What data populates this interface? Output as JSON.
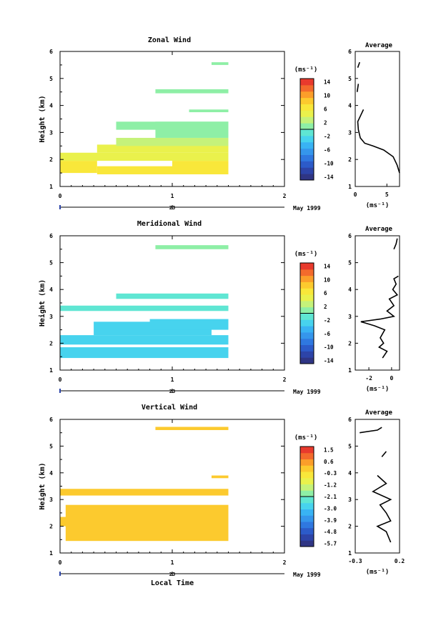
{
  "colors": {
    "scale": [
      "#2f3584",
      "#2d44a8",
      "#2c5bc9",
      "#2f78e0",
      "#3596ec",
      "#39b3f4",
      "#47d3ee",
      "#5fe6d3",
      "#8eefa6",
      "#c5f27a",
      "#eaf14c",
      "#f9e73a",
      "#fcca2e",
      "#fb9e2a",
      "#f36a2c",
      "#e83a2d"
    ],
    "fill_light": "#ffd44b",
    "fill_yellow": "#f7f23a",
    "fill_cyan": "#3ff0f0",
    "fill_sky": "#3ec6f4",
    "fill_teal": "#5ff0c0",
    "fill_mint": "#6ff7b0",
    "line": "#000000"
  },
  "panels": [
    {
      "title": "Zonal Wind",
      "ylabel": "Height (km)",
      "yticks": [
        "1",
        "2",
        "3",
        "4",
        "5",
        "6"
      ],
      "xticks": [
        "0",
        "1",
        "2"
      ],
      "date_day": "23",
      "date_label": "May 1999",
      "cbar_unit": "(ms⁻¹)",
      "cbar_ticks": [
        "14",
        "10",
        "6",
        "2",
        "-2",
        "-6",
        "-10",
        "-14"
      ],
      "avg_title": "Average",
      "avg_xticks": [
        "0",
        "5"
      ],
      "avg_unit": "(ms⁻¹)"
    },
    {
      "title": "Meridional Wind",
      "ylabel": "Height (km)",
      "yticks": [
        "1",
        "2",
        "3",
        "4",
        "5",
        "6"
      ],
      "xticks": [
        "0",
        "1",
        "2"
      ],
      "date_day": "23",
      "date_label": "May 1999",
      "cbar_unit": "(ms⁻¹)",
      "cbar_ticks": [
        "14",
        "10",
        "6",
        "2",
        "-2",
        "-6",
        "-10",
        "-14"
      ],
      "avg_title": "Average",
      "avg_xticks": [
        "-2",
        "0"
      ],
      "avg_unit": "(ms⁻¹)"
    },
    {
      "title": "Vertical Wind",
      "ylabel": "Height (km)",
      "yticks": [
        "1",
        "2",
        "3",
        "4",
        "5",
        "6"
      ],
      "xticks": [
        "0",
        "1",
        "2"
      ],
      "date_day": "23",
      "date_label": "May 1999",
      "cbar_unit": "(ms⁻¹)",
      "cbar_ticks": [
        "1.5",
        "0.6",
        "-0.3",
        "-1.2",
        "-2.1",
        "-3.0",
        "-3.9",
        "-4.8",
        "-5.7"
      ],
      "avg_title": "Average",
      "avg_xticks": [
        "-0.3",
        "0.2"
      ],
      "avg_unit": "(ms⁻¹)",
      "xlabel": "Local Time"
    }
  ],
  "chart_data": [
    {
      "type": "heatmap",
      "title": "Zonal Wind",
      "xlabel": "",
      "ylabel": "Height (km)",
      "xlim": [
        0,
        2
      ],
      "ylim": [
        1,
        6
      ],
      "cbar_range": [
        -16,
        16
      ],
      "cells": [
        {
          "x": [
            0.0,
            0.33
          ],
          "y": [
            1.5,
            1.95
          ],
          "v": 7
        },
        {
          "x": [
            0.33,
            1.0
          ],
          "y": [
            1.45,
            1.75
          ],
          "v": 7
        },
        {
          "x": [
            1.0,
            1.5
          ],
          "y": [
            1.45,
            1.95
          ],
          "v": 7
        },
        {
          "x": [
            0.0,
            1.5
          ],
          "y": [
            1.95,
            2.25
          ],
          "v": 4
        },
        {
          "x": [
            0.33,
            1.5
          ],
          "y": [
            2.25,
            2.55
          ],
          "v": 4
        },
        {
          "x": [
            0.5,
            1.5
          ],
          "y": [
            2.5,
            2.8
          ],
          "v": 3
        },
        {
          "x": [
            0.85,
            1.5
          ],
          "y": [
            2.8,
            3.4
          ],
          "v": 1
        },
        {
          "x": [
            0.5,
            1.5
          ],
          "y": [
            3.1,
            3.4
          ],
          "v": 1
        },
        {
          "x": [
            1.15,
            1.5
          ],
          "y": [
            3.75,
            3.85
          ],
          "v": 1
        },
        {
          "x": [
            0.85,
            1.5
          ],
          "y": [
            4.45,
            4.6
          ],
          "v": 0
        },
        {
          "x": [
            1.35,
            1.5
          ],
          "y": [
            5.5,
            5.6
          ],
          "v": 0
        }
      ],
      "average": {
        "xlim": [
          0,
          7
        ],
        "ylim": [
          1,
          6
        ],
        "segments": [
          [
            [
              7.0,
              1.5
            ],
            [
              6.6,
              1.8
            ],
            [
              6.0,
              2.1
            ],
            [
              4.5,
              2.35
            ],
            [
              2.8,
              2.5
            ],
            [
              1.5,
              2.6
            ],
            [
              0.8,
              2.8
            ],
            [
              0.5,
              3.1
            ],
            [
              0.4,
              3.4
            ],
            [
              0.8,
              3.6
            ],
            [
              1.3,
              3.85
            ]
          ],
          [
            [
              0.3,
              4.5
            ],
            [
              0.5,
              4.8
            ]
          ],
          [
            [
              0.4,
              5.4
            ],
            [
              0.7,
              5.6
            ]
          ]
        ]
      }
    },
    {
      "type": "heatmap",
      "title": "Meridional Wind",
      "xlabel": "",
      "ylabel": "Height (km)",
      "xlim": [
        0,
        2
      ],
      "ylim": [
        1,
        6
      ],
      "cbar_range": [
        -16,
        16
      ],
      "cells": [
        {
          "x": [
            0.0,
            1.5
          ],
          "y": [
            1.45,
            1.85
          ],
          "v": -4
        },
        {
          "x": [
            0.0,
            1.5
          ],
          "y": [
            1.95,
            2.3
          ],
          "v": -4
        },
        {
          "x": [
            0.3,
            1.35
          ],
          "y": [
            2.3,
            2.8
          ],
          "v": -4
        },
        {
          "x": [
            0.8,
            1.5
          ],
          "y": [
            2.5,
            2.9
          ],
          "v": -3
        },
        {
          "x": [
            0.0,
            1.5
          ],
          "y": [
            3.2,
            3.4
          ],
          "v": -2
        },
        {
          "x": [
            0.5,
            1.5
          ],
          "y": [
            3.65,
            3.85
          ],
          "v": -2
        },
        {
          "x": [
            0.85,
            1.5
          ],
          "y": [
            5.5,
            5.65
          ],
          "v": 0
        }
      ],
      "average": {
        "xlim": [
          -3.2,
          0.7
        ],
        "ylim": [
          1,
          6
        ],
        "segments": [
          [
            [
              -0.8,
              1.45
            ],
            [
              -0.4,
              1.7
            ],
            [
              -1.1,
              1.85
            ],
            [
              -0.7,
              2.0
            ],
            [
              -1.0,
              2.2
            ],
            [
              -0.6,
              2.5
            ],
            [
              -1.5,
              2.65
            ],
            [
              -2.7,
              2.8
            ],
            [
              -1.0,
              2.9
            ],
            [
              0.2,
              3.0
            ],
            [
              -0.4,
              3.2
            ],
            [
              0.2,
              3.4
            ],
            [
              -0.2,
              3.65
            ],
            [
              0.5,
              3.8
            ],
            [
              0.1,
              4.0
            ],
            [
              0.4,
              4.2
            ],
            [
              0.2,
              4.4
            ],
            [
              0.6,
              4.5
            ]
          ],
          [
            [
              0.2,
              5.5
            ],
            [
              0.4,
              5.7
            ],
            [
              0.5,
              5.9
            ]
          ]
        ]
      }
    },
    {
      "type": "heatmap",
      "title": "Vertical Wind",
      "xlabel": "Local Time",
      "ylabel": "Height (km)",
      "xlim": [
        0,
        2
      ],
      "ylim": [
        1,
        6
      ],
      "cbar_range": [
        -6.2,
        2.0
      ],
      "cells": [
        {
          "x": [
            0.05,
            1.5
          ],
          "y": [
            1.45,
            2.8
          ],
          "v": 0.3
        },
        {
          "x": [
            0.0,
            0.45
          ],
          "y": [
            2.0,
            2.35
          ],
          "v": 0.3
        },
        {
          "x": [
            0.0,
            1.5
          ],
          "y": [
            3.15,
            3.4
          ],
          "v": 0.3
        },
        {
          "x": [
            1.35,
            1.5
          ],
          "y": [
            3.8,
            3.9
          ],
          "v": 0.3
        },
        {
          "x": [
            0.85,
            1.5
          ],
          "y": [
            5.6,
            5.72
          ],
          "v": 0.3
        }
      ],
      "average": {
        "xlim": [
          -0.3,
          0.2
        ],
        "ylim": [
          1,
          6
        ],
        "segments": [
          [
            [
              0.1,
              1.4
            ],
            [
              0.05,
              1.8
            ],
            [
              -0.05,
              2.0
            ],
            [
              0.1,
              2.2
            ],
            [
              0.05,
              2.5
            ],
            [
              -0.02,
              2.8
            ],
            [
              0.1,
              3.0
            ],
            [
              -0.1,
              3.3
            ],
            [
              0.05,
              3.6
            ],
            [
              -0.05,
              3.9
            ]
          ],
          [
            [
              0.0,
              4.6
            ],
            [
              0.05,
              4.8
            ]
          ],
          [
            [
              -0.25,
              5.5
            ],
            [
              -0.05,
              5.6
            ],
            [
              0.0,
              5.7
            ]
          ]
        ]
      }
    }
  ]
}
